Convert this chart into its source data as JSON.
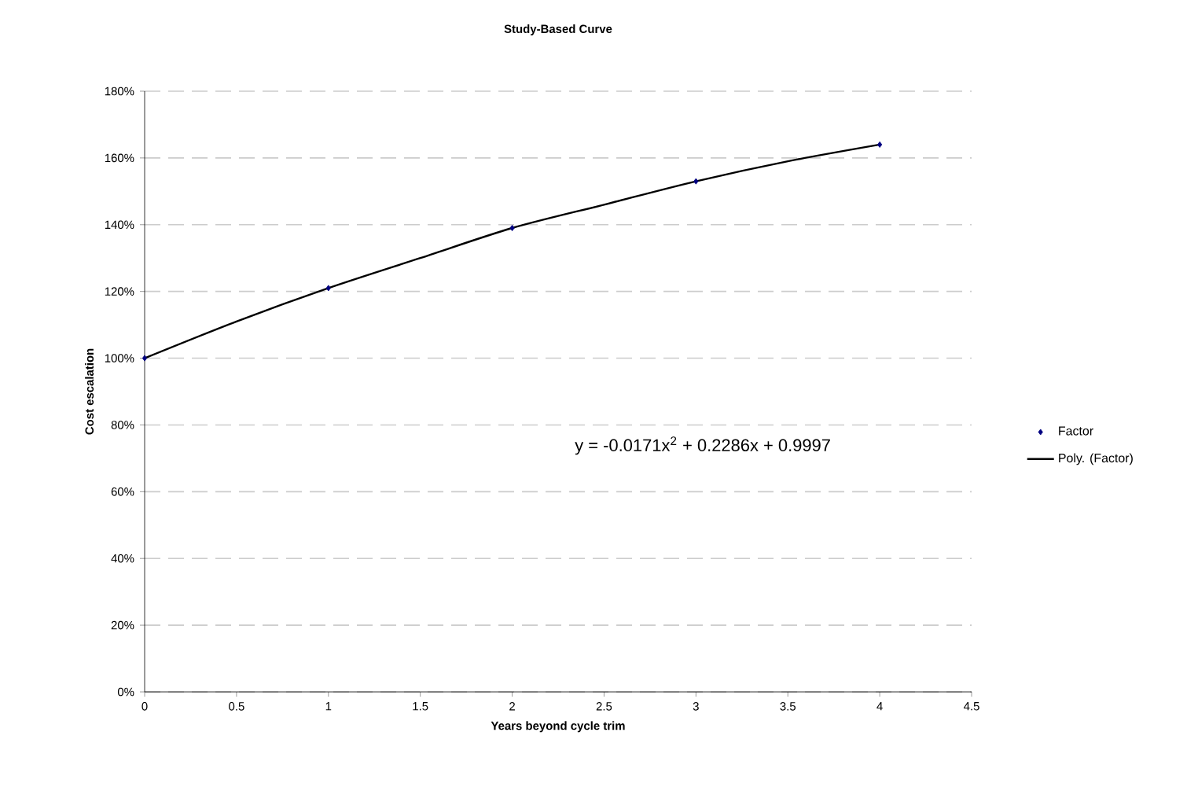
{
  "chart_data": {
    "type": "scatter",
    "title": "Study-Based Curve",
    "xlabel": "Years beyond cycle trim",
    "ylabel": "Cost escalation",
    "annotations": [
      "y = -0.0171x$^{2}$ + 0.2286x + 0.9997"
    ],
    "series": [
      {
        "name": "Factor",
        "type": "scatter",
        "color": "#000080",
        "marker": "diamond",
        "x": [
          0,
          1,
          2,
          3,
          4
        ],
        "values": [
          100,
          121,
          139,
          153,
          164
        ]
      },
      {
        "name": "Poly. (Factor)",
        "type": "line",
        "color": "#000000",
        "marker": "none",
        "line_style": "solid",
        "x": [
          0,
          0.5,
          1,
          1.5,
          2,
          2.5,
          3,
          3.5,
          4
        ],
        "values": [
          100,
          111,
          121,
          130,
          139,
          146,
          153,
          159,
          164
        ]
      }
    ],
    "xlim": [
      0,
      4.5
    ],
    "xticks": [
      0,
      0.5,
      1,
      1.5,
      2,
      2.5,
      3,
      3.5,
      4,
      4.5
    ],
    "ylim": [
      0,
      180
    ],
    "yticks": [
      {
        "value": 0,
        "label": "0%"
      },
      {
        "value": 20,
        "label": "20%"
      },
      {
        "value": 40,
        "label": "40%"
      },
      {
        "value": 60,
        "label": "60%"
      },
      {
        "value": 80,
        "label": "80%"
      },
      {
        "value": 100,
        "label": "100%"
      },
      {
        "value": 120,
        "label": "120%"
      },
      {
        "value": 140,
        "label": "140%"
      },
      {
        "value": 160,
        "label": "160%"
      },
      {
        "value": 180,
        "label": "180%"
      }
    ],
    "grid": "y",
    "legend": "right"
  }
}
